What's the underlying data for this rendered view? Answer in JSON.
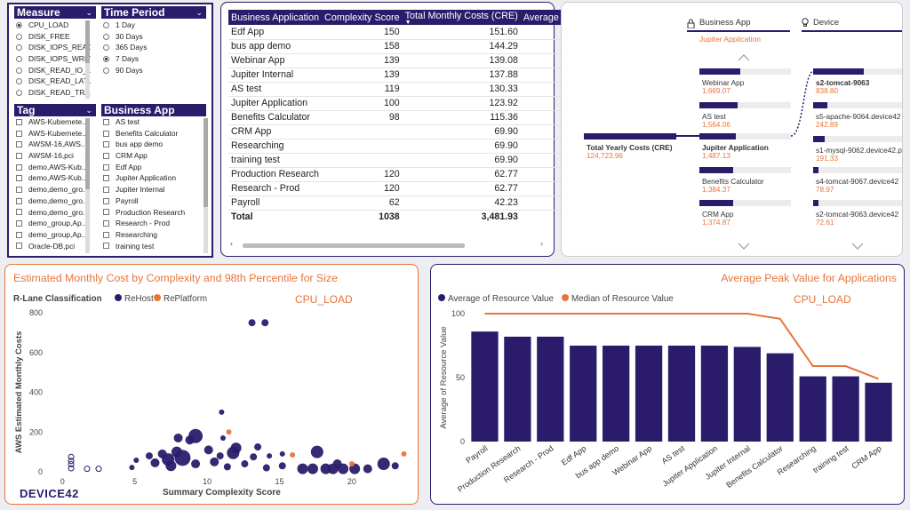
{
  "colors": {
    "navy": "#2b1c6b",
    "orange": "#e8743b"
  },
  "measure": {
    "title": "Measure",
    "items": [
      {
        "label": "CPU_LOAD",
        "selected": true
      },
      {
        "label": "DISK_FREE",
        "selected": false
      },
      {
        "label": "DISK_IOPS_READ",
        "selected": false
      },
      {
        "label": "DISK_IOPS_WRITE",
        "selected": false
      },
      {
        "label": "DISK_READ_IO_...",
        "selected": false
      },
      {
        "label": "DISK_READ_LAT...",
        "selected": false
      },
      {
        "label": "DISK_READ_TRA...",
        "selected": false
      }
    ]
  },
  "time_period": {
    "title": "Time Period",
    "items": [
      {
        "label": "1 Day",
        "selected": false
      },
      {
        "label": "30 Days",
        "selected": false
      },
      {
        "label": "365 Days",
        "selected": false
      },
      {
        "label": "7 Days",
        "selected": true
      },
      {
        "label": "90 Days",
        "selected": false
      }
    ]
  },
  "tag": {
    "title": "Tag",
    "items": [
      "AWS-Kubernete...",
      "AWS-Kubernete...",
      "AWSM-16,AWS...",
      "AWSM-16,pci",
      "demo,AWS-Kub...",
      "demo,AWS-Kub...",
      "demo,demo_gro...",
      "demo,demo_gro...",
      "demo,demo_gro...",
      "demo_group,Ap...",
      "demo_group,Ap...",
      "Oracle-DB,pci"
    ]
  },
  "business_app_slicer": {
    "title": "Business App",
    "items": [
      "AS test",
      "Benefits Calculator",
      "bus app demo",
      "CRM App",
      "Edf App",
      "Jupiter Application",
      "Jupiter Internal",
      "Payroll",
      "Production Research",
      "Research - Prod",
      "Researching",
      "training test"
    ]
  },
  "table": {
    "columns": [
      "Business Application",
      "Complexity Score",
      "Total Monthly Costs (CRE)",
      "Average"
    ],
    "rows": [
      [
        "Edf App",
        "150",
        "151.60"
      ],
      [
        "bus app demo",
        "158",
        "144.29"
      ],
      [
        "Webinar App",
        "139",
        "139.08"
      ],
      [
        "Jupiter Internal",
        "139",
        "137.88"
      ],
      [
        "AS test",
        "119",
        "130.33"
      ],
      [
        "Jupiter Application",
        "100",
        "123.92"
      ],
      [
        "Benefits Calculator",
        "98",
        "115.36"
      ],
      [
        "CRM App",
        "",
        "69.90"
      ],
      [
        "Researching",
        "",
        "69.90"
      ],
      [
        "training test",
        "",
        "69.90"
      ],
      [
        "Production Research",
        "120",
        "62.77"
      ],
      [
        "Research - Prod",
        "120",
        "62.77"
      ],
      [
        "Payroll",
        "62",
        "42.23"
      ]
    ],
    "total": [
      "Total",
      "1038",
      "3,481.93"
    ]
  },
  "tree": {
    "col1": "Business App",
    "col2": "Device",
    "filter": "Jupiter Application",
    "root": {
      "label": "Total Yearly Costs (CRE)",
      "value": "124,723.96"
    },
    "apps": [
      {
        "label": "Webinar App",
        "value": "1,669.07",
        "fill": 0.45
      },
      {
        "label": "AS test",
        "value": "1,564.06",
        "fill": 0.42
      },
      {
        "label": "Jupiter Application",
        "value": "1,487.13",
        "fill": 0.4
      },
      {
        "label": "Benefits Calculator",
        "value": "1,384.37",
        "fill": 0.37
      },
      {
        "label": "CRM App",
        "value": "1,374.87",
        "fill": 0.37
      }
    ],
    "devices": [
      {
        "label": "s2-tomcat-9063",
        "value": "838.80",
        "fill": 0.56
      },
      {
        "label": "s5-apache-9064.device42",
        "value": "242.89",
        "fill": 0.16
      },
      {
        "label": "s1-mysql-9062.device42.p",
        "value": "191.33",
        "fill": 0.13
      },
      {
        "label": "s4-tomcat-9067.device42",
        "value": "78.97",
        "fill": 0.05
      },
      {
        "label": "s2-tomcat-9063.device42",
        "value": "72.61",
        "fill": 0.05
      }
    ]
  },
  "scatter": {
    "title": "Estimated Monthly Cost by Complexity and 98th Percentile for Size",
    "measure_tag": "CPU_LOAD",
    "brand": "DEVICE42",
    "chart_data": {
      "type": "scatter",
      "title": "Estimated Monthly Cost by Complexity and 98th Percentile for Size",
      "legend_title": "R-Lane Classification",
      "series_names": [
        "ReHost",
        "RePlatform"
      ],
      "xlabel": "Summary Complexity Score",
      "ylabel": "AWS Estimated Monthly Costs",
      "xlim": [
        -1,
        24
      ],
      "ylim": [
        0,
        800
      ],
      "xticks": [
        0,
        5,
        10,
        15,
        20
      ],
      "yticks": [
        0,
        200,
        400,
        600,
        800
      ],
      "points": [
        {
          "x": 0.6,
          "y": 75,
          "s": 3,
          "series": 0,
          "hollow": true
        },
        {
          "x": 0.6,
          "y": 55,
          "s": 3,
          "series": 0,
          "hollow": true
        },
        {
          "x": 0.6,
          "y": 38,
          "s": 3,
          "series": 0,
          "hollow": true
        },
        {
          "x": 0.6,
          "y": 18,
          "s": 3,
          "series": 0,
          "hollow": true
        },
        {
          "x": 1.7,
          "y": 15,
          "s": 3,
          "series": 0,
          "hollow": true
        },
        {
          "x": 2.5,
          "y": 15,
          "s": 3,
          "series": 0,
          "hollow": true
        },
        {
          "x": 4.8,
          "y": 22,
          "s": 3,
          "series": 0
        },
        {
          "x": 5.1,
          "y": 58,
          "s": 3,
          "series": 0
        },
        {
          "x": 6.0,
          "y": 80,
          "s": 4,
          "series": 0
        },
        {
          "x": 6.4,
          "y": 45,
          "s": 5,
          "series": 0
        },
        {
          "x": 6.9,
          "y": 90,
          "s": 5,
          "series": 0
        },
        {
          "x": 7.3,
          "y": 62,
          "s": 7,
          "series": 0
        },
        {
          "x": 7.5,
          "y": 30,
          "s": 6,
          "series": 0
        },
        {
          "x": 7.9,
          "y": 100,
          "s": 6,
          "series": 0
        },
        {
          "x": 8.0,
          "y": 170,
          "s": 5,
          "series": 0
        },
        {
          "x": 8.3,
          "y": 70,
          "s": 9,
          "series": 0
        },
        {
          "x": 8.8,
          "y": 160,
          "s": 5,
          "series": 0
        },
        {
          "x": 9.2,
          "y": 180,
          "s": 8,
          "series": 0
        },
        {
          "x": 9.2,
          "y": 40,
          "s": 5,
          "series": 0
        },
        {
          "x": 10.1,
          "y": 110,
          "s": 5,
          "series": 0
        },
        {
          "x": 10.5,
          "y": 50,
          "s": 5,
          "series": 0
        },
        {
          "x": 10.9,
          "y": 80,
          "s": 4,
          "series": 0
        },
        {
          "x": 11.0,
          "y": 300,
          "s": 3,
          "series": 0
        },
        {
          "x": 11.1,
          "y": 170,
          "s": 3,
          "series": 0
        },
        {
          "x": 11.4,
          "y": 25,
          "s": 4,
          "series": 0
        },
        {
          "x": 11.8,
          "y": 95,
          "s": 7,
          "series": 0
        },
        {
          "x": 12.0,
          "y": 120,
          "s": 6,
          "series": 0
        },
        {
          "x": 12.6,
          "y": 40,
          "s": 4,
          "series": 0
        },
        {
          "x": 13.2,
          "y": 75,
          "s": 4,
          "series": 0
        },
        {
          "x": 13.1,
          "y": 750,
          "s": 4,
          "series": 0
        },
        {
          "x": 14.0,
          "y": 750,
          "s": 4,
          "series": 0
        },
        {
          "x": 13.5,
          "y": 125,
          "s": 4,
          "series": 0
        },
        {
          "x": 14.1,
          "y": 20,
          "s": 4,
          "series": 0
        },
        {
          "x": 14.3,
          "y": 80,
          "s": 3,
          "series": 0
        },
        {
          "x": 15.2,
          "y": 30,
          "s": 4,
          "series": 0
        },
        {
          "x": 15.2,
          "y": 90,
          "s": 3,
          "series": 0
        },
        {
          "x": 16.6,
          "y": 15,
          "s": 6,
          "series": 0
        },
        {
          "x": 17.3,
          "y": 15,
          "s": 6,
          "series": 0
        },
        {
          "x": 17.6,
          "y": 100,
          "s": 7,
          "series": 0
        },
        {
          "x": 18.2,
          "y": 15,
          "s": 6,
          "series": 0
        },
        {
          "x": 18.7,
          "y": 15,
          "s": 6,
          "series": 0
        },
        {
          "x": 19.0,
          "y": 40,
          "s": 5,
          "series": 0
        },
        {
          "x": 19.4,
          "y": 15,
          "s": 6,
          "series": 0
        },
        {
          "x": 20.2,
          "y": 15,
          "s": 6,
          "series": 0
        },
        {
          "x": 21.1,
          "y": 15,
          "s": 5,
          "series": 0
        },
        {
          "x": 22.2,
          "y": 40,
          "s": 7,
          "series": 0
        },
        {
          "x": 23.0,
          "y": 30,
          "s": 4,
          "series": 0
        },
        {
          "x": 11.5,
          "y": 200,
          "s": 3,
          "series": 1
        },
        {
          "x": 15.9,
          "y": 85,
          "s": 3,
          "series": 1
        },
        {
          "x": 20.0,
          "y": 40,
          "s": 3,
          "series": 1
        },
        {
          "x": 23.6,
          "y": 90,
          "s": 3,
          "series": 1
        }
      ]
    }
  },
  "bar": {
    "title": "Average Peak Value for Applications",
    "measure_tag": "CPU_LOAD",
    "chart_data": {
      "type": "bar",
      "title": "Average Peak Value for Applications",
      "categories": [
        "Payroll",
        "Production Research",
        "Research - Prod",
        "Edf App",
        "bus app demo",
        "Webinar App",
        "AS test",
        "Jupiter Application",
        "Jupiter Internal",
        "Benefits Calculator",
        "Researching",
        "training test",
        "CRM App"
      ],
      "series": [
        {
          "name": "Average of Resource Value",
          "type": "bar",
          "values": [
            86,
            82,
            82,
            75,
            75,
            75,
            75,
            75,
            74,
            69,
            51,
            51,
            46
          ]
        },
        {
          "name": "Median of Resource Value",
          "type": "line",
          "values": [
            100,
            100,
            100,
            100,
            100,
            100,
            100,
            100,
            100,
            96,
            59,
            59,
            49
          ]
        }
      ],
      "ylabel": "Average of Resource Value",
      "ylim": [
        0,
        100
      ],
      "yticks": [
        0,
        50,
        100
      ]
    }
  }
}
